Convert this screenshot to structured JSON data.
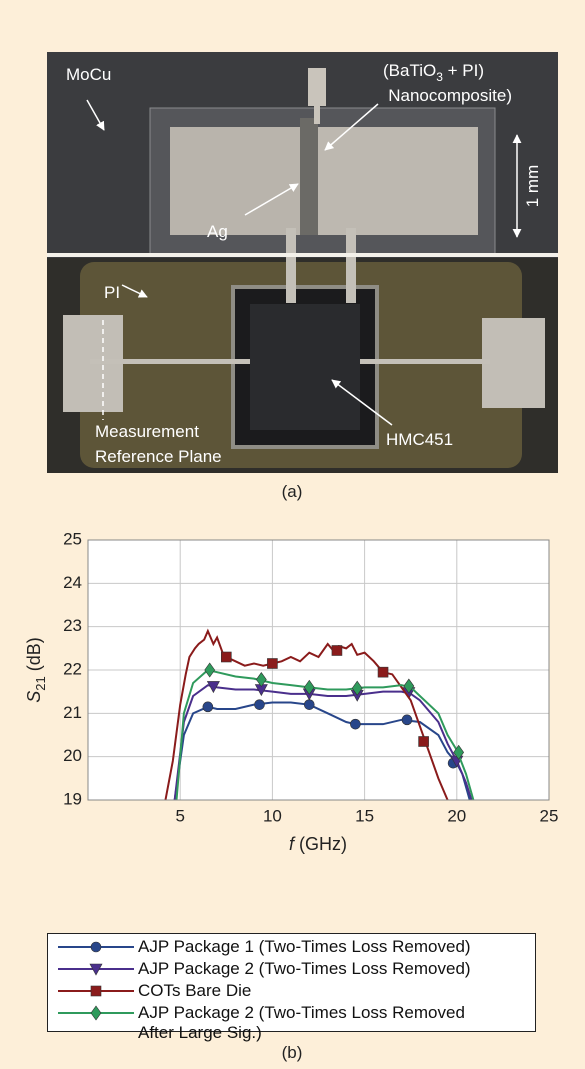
{
  "photo": {
    "labels": {
      "mocu": "MoCu",
      "nanocomposite": {
        "open": "(BaTiO",
        "sub": "3",
        "rest": " + PI)",
        "line2": "Nanocomposite)"
      },
      "ag": "Ag",
      "scale": "1 mm",
      "pi": "PI",
      "reference_line1": "Measurement",
      "reference_line2": "Reference Plane",
      "chip": "HMC451"
    },
    "caption": "(a)"
  },
  "chart_data": {
    "type": "line",
    "ylabel": {
      "symbol": "S",
      "sub": "21",
      "unit": " (dB)"
    },
    "xlabel": {
      "symbol": "f",
      "unit": " (GHz)"
    },
    "xlim": [
      0,
      25
    ],
    "xticks": [
      5,
      10,
      15,
      20,
      25
    ],
    "ylim": [
      19,
      25
    ],
    "yticks": [
      19,
      20,
      21,
      22,
      23,
      24,
      25
    ],
    "grid": true,
    "caption": "(b)",
    "series": [
      {
        "name": "AJP Package 1 (Two-Times Loss Removed)",
        "color": "#28468a",
        "marker": "circle",
        "x": [
          4.7,
          5.2,
          5.7,
          6.5,
          7,
          8,
          9,
          10,
          11,
          12,
          13,
          14,
          14.5,
          15,
          16,
          17,
          18,
          19,
          19.5,
          20,
          20.3,
          20.7
        ],
        "values": [
          19,
          20.5,
          21.0,
          21.15,
          21.1,
          21.1,
          21.2,
          21.25,
          21.25,
          21.2,
          21.0,
          20.8,
          20.75,
          20.75,
          20.75,
          20.85,
          20.8,
          20.5,
          20.1,
          19.85,
          19.6,
          19.0
        ],
        "markers": {
          "x": [
            6.5,
            9.3,
            12,
            14.5,
            17.3,
            19.8
          ],
          "values": [
            21.15,
            21.2,
            21.2,
            20.75,
            20.85,
            19.85
          ]
        }
      },
      {
        "name": "AJP Package 2 (Two-Times Loss Removed)",
        "color": "#4a2f8c",
        "marker": "triangle-down",
        "x": [
          4.7,
          5.2,
          5.7,
          6.5,
          7,
          8,
          9,
          10,
          11,
          12,
          13,
          14,
          15,
          16,
          17,
          17.5,
          18,
          19,
          19.5,
          20,
          20.5,
          20.8
        ],
        "values": [
          19,
          20.8,
          21.4,
          21.65,
          21.6,
          21.55,
          21.55,
          21.5,
          21.45,
          21.45,
          21.4,
          21.4,
          21.45,
          21.5,
          21.5,
          21.45,
          21.3,
          20.8,
          20.3,
          19.9,
          19.4,
          19.0
        ],
        "markers": {
          "x": [
            6.8,
            9.4,
            12,
            14.6,
            17.4,
            20
          ],
          "values": [
            21.62,
            21.55,
            21.45,
            21.42,
            21.48,
            19.9
          ]
        }
      },
      {
        "name": "COTs Bare Die",
        "color": "#8a1b1b",
        "marker": "square",
        "x": [
          4.2,
          4.6,
          5,
          5.3,
          5.5,
          5.8,
          6,
          6.3,
          6.5,
          6.8,
          7,
          7.3,
          7.5,
          8,
          8.5,
          9,
          9.5,
          10,
          10.5,
          11,
          11.5,
          12,
          12.5,
          13,
          13.3,
          13.6,
          14,
          14.3,
          14.6,
          15,
          15.5,
          16,
          16.5,
          17,
          17.5,
          18,
          18.5,
          19,
          19.5
        ],
        "values": [
          19,
          19.9,
          21.2,
          21.9,
          22.3,
          22.5,
          22.6,
          22.7,
          22.9,
          22.6,
          22.75,
          22.4,
          22.3,
          22.2,
          22.1,
          22.15,
          22.1,
          22.15,
          22.2,
          22.3,
          22.2,
          22.4,
          22.3,
          22.6,
          22.45,
          22.55,
          22.5,
          22.6,
          22.35,
          22.4,
          22.2,
          21.95,
          21.9,
          21.6,
          21.3,
          20.7,
          20.1,
          19.5,
          19.0
        ],
        "markers": {
          "x": [
            7.5,
            10,
            13.5,
            16,
            18.2
          ],
          "values": [
            22.3,
            22.15,
            22.45,
            21.95,
            20.35
          ]
        }
      },
      {
        "name": "AJP Package 2 (Two-Times Loss Removed\nAfter Large Sig.)",
        "color": "#2f9a5c",
        "marker": "diamond",
        "x": [
          4.8,
          5.2,
          5.7,
          6.5,
          7,
          8,
          9,
          10,
          11,
          12,
          13,
          14,
          15,
          16,
          17,
          17.5,
          18,
          19,
          19.5,
          20,
          20.5,
          20.9
        ],
        "values": [
          19,
          21.0,
          21.7,
          22.0,
          21.95,
          21.85,
          21.8,
          21.7,
          21.65,
          21.6,
          21.55,
          21.55,
          21.6,
          21.6,
          21.65,
          21.6,
          21.4,
          21.0,
          20.5,
          20.15,
          19.6,
          19.0
        ],
        "markers": {
          "x": [
            6.6,
            9.4,
            12,
            14.6,
            17.4,
            20.1
          ],
          "values": [
            22.0,
            21.78,
            21.6,
            21.58,
            21.63,
            20.1
          ]
        }
      }
    ]
  }
}
